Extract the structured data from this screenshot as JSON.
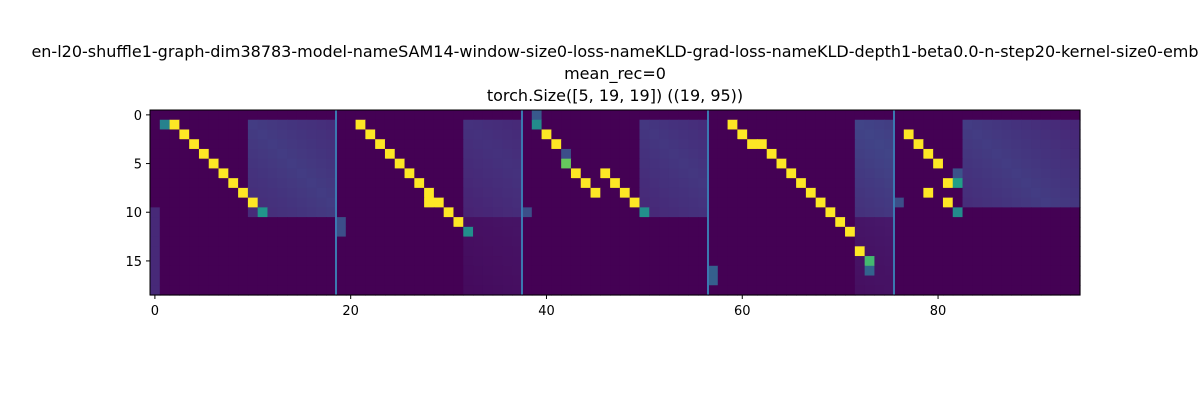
{
  "chart_data": {
    "type": "heatmap",
    "title_lines": [
      "en-l20-shuffle1-graph-dim38783-model-nameSAM14-window-size0-loss-nameKLD-grad-loss-nameKLD-depth1-beta0.0-n-step20-kernel-size0-emb",
      "mean_rec=0",
      "torch.Size([5, 19, 19]) ((19, 95))"
    ],
    "xlabel": "",
    "ylabel": "",
    "rows": 19,
    "cols": 95,
    "xlim": [
      -0.5,
      94.5
    ],
    "ylim": [
      18.5,
      -0.5
    ],
    "xticks": [
      0,
      20,
      40,
      60,
      80
    ],
    "yticks": [
      0,
      5,
      10,
      15
    ],
    "colormap": "viridis",
    "value_range": [
      0,
      1
    ],
    "background_value": 0.0,
    "separators_x": [
      18.5,
      37.5,
      56.5,
      75.5
    ],
    "separator_color": "#3b78b0",
    "strong_cells": [
      {
        "panel": 0,
        "cells": [
          [
            1,
            1,
            0.55
          ],
          [
            1,
            2,
            1.0
          ],
          [
            2,
            3,
            1.0
          ],
          [
            3,
            4,
            1.0
          ],
          [
            4,
            5,
            1.0
          ],
          [
            5,
            6,
            1.0
          ],
          [
            6,
            7,
            1.0
          ],
          [
            7,
            8,
            1.0
          ],
          [
            8,
            9,
            1.0
          ],
          [
            9,
            10,
            1.0
          ],
          [
            10,
            11,
            0.65
          ]
        ]
      },
      {
        "panel": 1,
        "cells": [
          [
            1,
            2,
            1.0
          ],
          [
            2,
            3,
            1.0
          ],
          [
            3,
            4,
            1.0
          ],
          [
            4,
            5,
            1.0
          ],
          [
            5,
            6,
            1.0
          ],
          [
            6,
            7,
            1.0
          ],
          [
            7,
            8,
            1.0
          ],
          [
            8,
            9,
            1.0
          ],
          [
            9,
            9,
            1.0
          ],
          [
            9,
            10,
            1.0
          ],
          [
            10,
            11,
            1.0
          ],
          [
            11,
            12,
            1.0
          ],
          [
            12,
            13,
            0.62
          ]
        ]
      },
      {
        "panel": 2,
        "cells": [
          [
            0,
            1,
            0.35
          ],
          [
            1,
            1,
            0.6
          ],
          [
            2,
            2,
            1.0
          ],
          [
            3,
            3,
            1.0
          ],
          [
            4,
            4,
            0.3
          ],
          [
            5,
            4,
            0.85
          ],
          [
            6,
            5,
            1.0
          ],
          [
            7,
            6,
            1.0
          ],
          [
            8,
            7,
            1.0
          ],
          [
            6,
            8,
            1.0
          ],
          [
            7,
            9,
            1.0
          ],
          [
            8,
            10,
            1.0
          ],
          [
            9,
            11,
            1.0
          ],
          [
            10,
            12,
            0.62
          ]
        ]
      },
      {
        "panel": 3,
        "cells": [
          [
            1,
            2,
            1.0
          ],
          [
            2,
            3,
            1.0
          ],
          [
            3,
            4,
            1.0
          ],
          [
            3,
            5,
            1.0
          ],
          [
            4,
            6,
            1.0
          ],
          [
            5,
            7,
            1.0
          ],
          [
            6,
            8,
            1.0
          ],
          [
            7,
            9,
            1.0
          ],
          [
            8,
            10,
            1.0
          ],
          [
            9,
            11,
            1.0
          ],
          [
            10,
            12,
            1.0
          ],
          [
            11,
            13,
            1.0
          ],
          [
            12,
            14,
            1.0
          ],
          [
            14,
            15,
            1.0
          ],
          [
            15,
            16,
            0.8
          ],
          [
            16,
            16,
            0.4
          ]
        ]
      },
      {
        "panel": 4,
        "cells": [
          [
            2,
            1,
            1.0
          ],
          [
            3,
            2,
            1.0
          ],
          [
            4,
            3,
            1.0
          ],
          [
            5,
            4,
            1.0
          ],
          [
            6,
            6,
            0.32
          ],
          [
            7,
            6,
            0.7
          ],
          [
            7,
            5,
            1.0
          ],
          [
            8,
            3,
            1.0
          ],
          [
            9,
            5,
            1.0
          ],
          [
            10,
            6,
            0.6
          ]
        ]
      }
    ],
    "diffuse_blocks": [
      {
        "panel": 0,
        "row_from": 1,
        "row_to": 10,
        "col_from": 10,
        "col_to": 18,
        "peak": 0.22
      },
      {
        "panel": 1,
        "row_from": 1,
        "row_to": 18,
        "col_from": 13,
        "col_to": 18,
        "peak": 0.18
      },
      {
        "panel": 2,
        "row_from": 1,
        "row_to": 10,
        "col_from": 12,
        "col_to": 18,
        "peak": 0.2
      },
      {
        "panel": 3,
        "row_from": 1,
        "row_to": 18,
        "col_from": 15,
        "col_to": 18,
        "peak": 0.25
      },
      {
        "panel": 4,
        "row_from": 1,
        "row_to": 9,
        "col_from": 7,
        "col_to": 18,
        "peak": 0.22
      }
    ],
    "left_column_marks": [
      {
        "panel": 0,
        "rows": [
          10,
          11,
          12,
          13,
          14,
          15,
          16,
          17,
          18
        ],
        "level": 0.15
      },
      {
        "panel": 1,
        "rows": [
          11,
          12
        ],
        "level": 0.3
      },
      {
        "panel": 2,
        "rows": [
          10
        ],
        "level": 0.3
      },
      {
        "panel": 3,
        "rows": [
          16,
          17
        ],
        "level": 0.38
      },
      {
        "panel": 4,
        "rows": [
          9
        ],
        "level": 0.3
      }
    ]
  }
}
